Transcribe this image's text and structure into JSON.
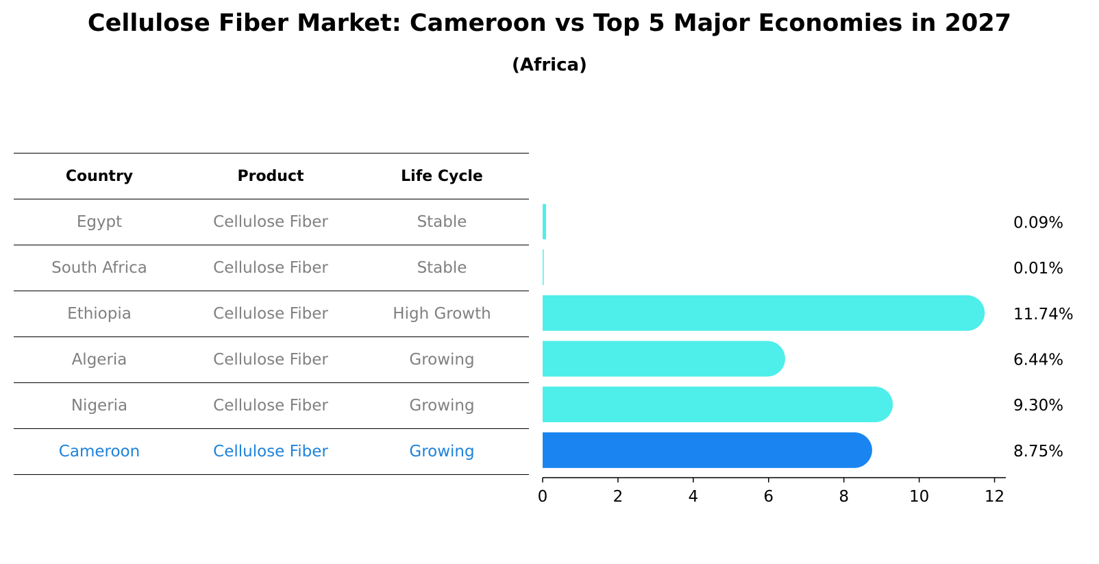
{
  "chart_data": {
    "type": "bar",
    "orientation": "horizontal",
    "title": "Cellulose Fiber Market: Cameroon vs Top 5 Major Economies in 2027",
    "subtitle": "(Africa)",
    "categories": [
      "Egypt",
      "South Africa",
      "Ethiopia",
      "Algeria",
      "Nigeria",
      "Cameroon"
    ],
    "values": [
      0.09,
      0.01,
      11.74,
      6.44,
      9.3,
      8.75
    ],
    "value_labels": [
      "0.09%",
      "0.01%",
      "11.74%",
      "6.44%",
      "9.30%",
      "8.75%"
    ],
    "xlim": [
      0,
      12.3
    ],
    "xticks": [
      0,
      2,
      4,
      6,
      8,
      10,
      12
    ],
    "xtick_labels": [
      "0",
      "2",
      "4",
      "6",
      "8",
      "10",
      "12"
    ],
    "highlight": "Cameroon",
    "colors": {
      "default": "#4eeeea",
      "highlight": "#1a85f0",
      "text_highlight": "#1e82d9",
      "text_muted": "#808080"
    },
    "table": {
      "headers": [
        "Country",
        "Product",
        "Life Cycle"
      ],
      "rows": [
        [
          "Egypt",
          "Cellulose Fiber",
          "Stable"
        ],
        [
          "South Africa",
          "Cellulose Fiber",
          "Stable"
        ],
        [
          "Ethiopia",
          "Cellulose Fiber",
          "High Growth"
        ],
        [
          "Algeria",
          "Cellulose Fiber",
          "Growing"
        ],
        [
          "Nigeria",
          "Cellulose Fiber",
          "Growing"
        ],
        [
          "Cameroon",
          "Cellulose Fiber",
          "Growing"
        ]
      ]
    }
  }
}
